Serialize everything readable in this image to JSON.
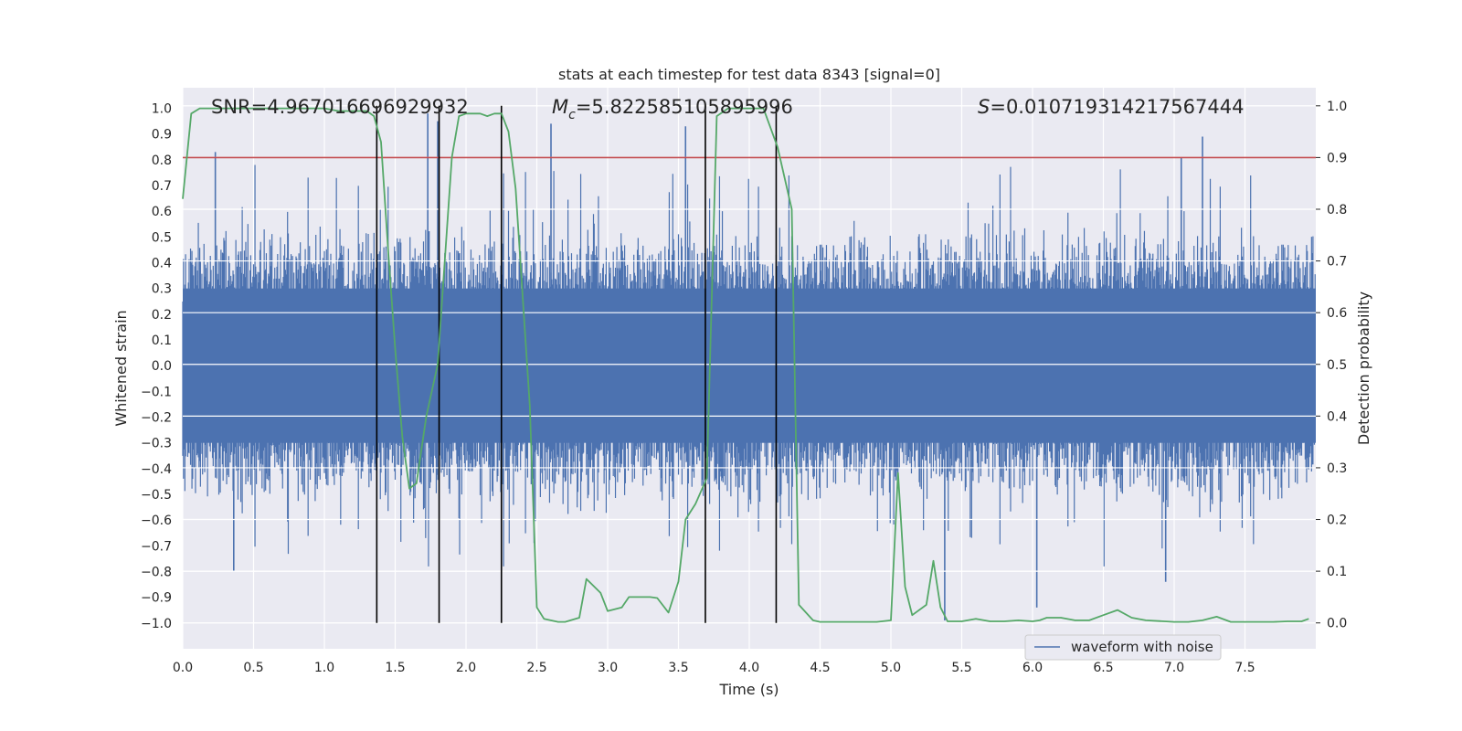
{
  "chart_data": {
    "type": "line",
    "title": "stats at each timestep for test data 8343 [signal=0]",
    "xlabel": "Time (s)",
    "ylabel_left": "Whitened strain",
    "ylabel_right": "Detection probability",
    "xlim": [
      0.0,
      8.0
    ],
    "ylim_left": [
      -1.1,
      1.08
    ],
    "ylim_right": [
      -0.05,
      1.035
    ],
    "x_ticks": [
      "0.0",
      "0.5",
      "1.0",
      "1.5",
      "2.0",
      "2.5",
      "3.0",
      "3.5",
      "4.0",
      "4.5",
      "5.0",
      "5.5",
      "6.0",
      "6.5",
      "7.0",
      "7.5"
    ],
    "y_ticks_left": [
      "1.0",
      "0.9",
      "0.8",
      "0.7",
      "0.6",
      "0.5",
      "0.4",
      "0.3",
      "0.2",
      "0.1",
      "0.0",
      "-0.1",
      "-0.2",
      "-0.3",
      "-0.4",
      "-0.5",
      "-0.6",
      "-0.7",
      "-0.8",
      "-0.9",
      "-1.0"
    ],
    "y_ticks_right": [
      "1.0",
      "0.9",
      "0.8",
      "0.7",
      "0.6",
      "0.5",
      "0.4",
      "0.3",
      "0.2",
      "0.1",
      "0.0"
    ],
    "annotations": {
      "snr_label": "SNR=4.967016696929932",
      "mc_label": "M",
      "mc_sub": "c",
      "mc_value": "=5.822585105895996",
      "s_label": "S",
      "s_value": "=0.010719314217567444"
    },
    "legend": [
      {
        "name": "waveform with noise",
        "color": "#4c72b0"
      }
    ],
    "threshold": {
      "axis": "right",
      "value": 0.9,
      "color": "#c44e52"
    },
    "vertical_lines": [
      1.37,
      1.81,
      2.25,
      3.69,
      4.19
    ],
    "series": [
      {
        "name": "waveform with noise",
        "axis": "left",
        "color": "#4c72b0",
        "description": "dense whitened noise, roughly symmetric, typical envelope +/-0.45 with spikes up to ~0.9",
        "x_range": [
          0.0,
          8.0
        ],
        "typical_amplitude": 0.45,
        "peak_values": [
          {
            "x": 0.23,
            "y": 0.83
          },
          {
            "x": 0.36,
            "y": -0.8
          },
          {
            "x": 1.73,
            "y": 0.98
          },
          {
            "x": 1.8,
            "y": 0.95
          },
          {
            "x": 2.6,
            "y": 0.94
          },
          {
            "x": 3.55,
            "y": 0.93
          },
          {
            "x": 6.03,
            "y": -0.94
          },
          {
            "x": 7.05,
            "y": 0.81
          },
          {
            "x": 7.2,
            "y": 0.89
          },
          {
            "x": 5.38,
            "y": -0.99
          },
          {
            "x": 6.94,
            "y": -0.84
          }
        ]
      },
      {
        "name": "detection probability",
        "axis": "right",
        "color": "#55a868",
        "x": [
          0.0,
          0.06,
          0.12,
          0.2,
          0.4,
          0.6,
          0.8,
          1.0,
          1.1,
          1.2,
          1.3,
          1.35,
          1.4,
          1.45,
          1.5,
          1.55,
          1.6,
          1.65,
          1.72,
          1.8,
          1.9,
          1.95,
          2.0,
          2.1,
          2.15,
          2.2,
          2.25,
          2.3,
          2.35,
          2.45,
          2.5,
          2.55,
          2.65,
          2.7,
          2.8,
          2.85,
          2.95,
          3.0,
          3.1,
          3.15,
          3.25,
          3.3,
          3.35,
          3.43,
          3.5,
          3.55,
          3.62,
          3.7,
          3.77,
          3.85,
          4.0,
          4.05,
          4.1,
          4.2,
          4.3,
          4.35,
          4.45,
          4.5,
          4.7,
          4.9,
          5.0,
          5.05,
          5.1,
          5.15,
          5.25,
          5.3,
          5.35,
          5.4,
          5.5,
          5.6,
          5.7,
          5.8,
          5.9,
          6.0,
          6.05,
          6.1,
          6.2,
          6.3,
          6.4,
          6.5,
          6.6,
          6.7,
          6.8,
          7.0,
          7.1,
          7.2,
          7.3,
          7.4,
          7.5,
          7.6,
          7.7,
          7.8,
          7.9,
          7.95
        ],
        "y": [
          0.82,
          0.985,
          0.995,
          0.995,
          0.995,
          0.995,
          0.995,
          0.995,
          0.99,
          0.99,
          0.99,
          0.98,
          0.93,
          0.72,
          0.53,
          0.36,
          0.26,
          0.27,
          0.4,
          0.5,
          0.9,
          0.98,
          0.985,
          0.985,
          0.98,
          0.985,
          0.985,
          0.95,
          0.84,
          0.42,
          0.03,
          0.008,
          0.002,
          0.002,
          0.01,
          0.085,
          0.058,
          0.023,
          0.03,
          0.05,
          0.05,
          0.05,
          0.048,
          0.02,
          0.08,
          0.2,
          0.23,
          0.28,
          0.98,
          0.995,
          0.995,
          0.995,
          0.995,
          0.92,
          0.8,
          0.035,
          0.005,
          0.002,
          0.002,
          0.002,
          0.005,
          0.29,
          0.07,
          0.015,
          0.035,
          0.12,
          0.03,
          0.003,
          0.003,
          0.008,
          0.003,
          0.003,
          0.005,
          0.003,
          0.005,
          0.01,
          0.01,
          0.005,
          0.005,
          0.015,
          0.025,
          0.01,
          0.005,
          0.002,
          0.002,
          0.005,
          0.012,
          0.002,
          0.002,
          0.002,
          0.002,
          0.003,
          0.003,
          0.008
        ]
      }
    ]
  }
}
